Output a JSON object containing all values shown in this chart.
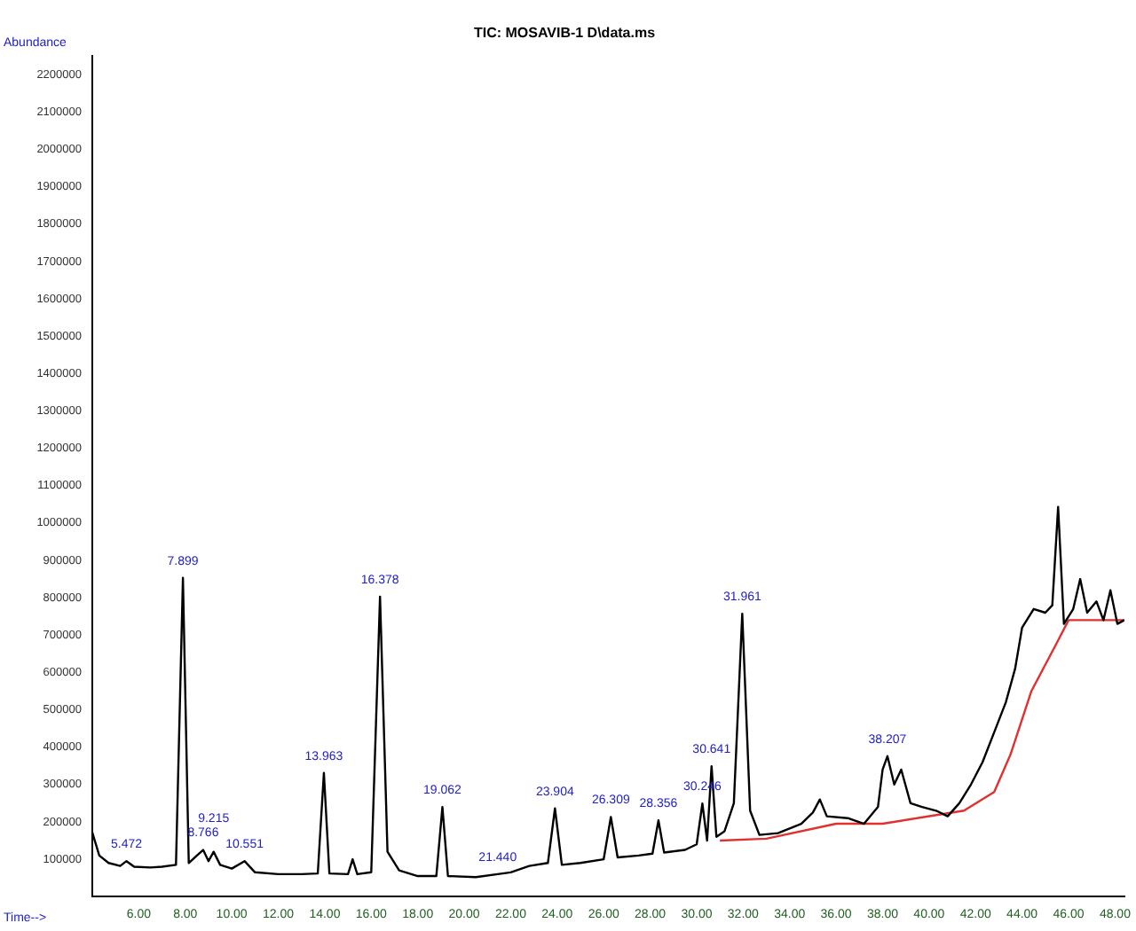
{
  "chart_data": {
    "type": "line",
    "title": "TIC: MOSAVIB-1 D\\data.ms",
    "xlabel": "Time-->",
    "ylabel": "Abundance",
    "legend": false,
    "grid": false,
    "marker": "none",
    "line_style": "solid",
    "xlim": [
      4,
      48.4
    ],
    "xticks": [
      {
        "value": 6,
        "label": "6.00"
      },
      {
        "value": 8,
        "label": "8.00"
      },
      {
        "value": 10,
        "label": "10.00"
      },
      {
        "value": 12,
        "label": "12.00"
      },
      {
        "value": 14,
        "label": "14.00"
      },
      {
        "value": 16,
        "label": "16.00"
      },
      {
        "value": 18,
        "label": "18.00"
      },
      {
        "value": 20,
        "label": "20.00"
      },
      {
        "value": 22,
        "label": "22.00"
      },
      {
        "value": 24,
        "label": "24.00"
      },
      {
        "value": 26,
        "label": "26.00"
      },
      {
        "value": 28,
        "label": "28.00"
      },
      {
        "value": 30,
        "label": "30.00"
      },
      {
        "value": 32,
        "label": "32.00"
      },
      {
        "value": 34,
        "label": "34.00"
      },
      {
        "value": 36,
        "label": "36.00"
      },
      {
        "value": 38,
        "label": "38.00"
      },
      {
        "value": 40,
        "label": "40.00"
      },
      {
        "value": 42,
        "label": "42.00"
      },
      {
        "value": 44,
        "label": "44.00"
      },
      {
        "value": 46,
        "label": "46.00"
      },
      {
        "value": 48,
        "label": "48.00"
      }
    ],
    "ylim": [
      0,
      2250000
    ],
    "yticks": [
      100000,
      200000,
      300000,
      400000,
      500000,
      600000,
      700000,
      800000,
      900000,
      1000000,
      1100000,
      1200000,
      1300000,
      1400000,
      1500000,
      1600000,
      1700000,
      1800000,
      1900000,
      2000000,
      2100000,
      2200000
    ],
    "series": [
      {
        "color": "#000000",
        "x": [
          4.0,
          4.3,
          4.7,
          5.2,
          5.47,
          5.8,
          6.5,
          7.0,
          7.6,
          7.899,
          8.15,
          8.5,
          8.77,
          9.0,
          9.22,
          9.5,
          10.0,
          10.55,
          11.0,
          12.0,
          13.0,
          13.7,
          13.963,
          14.2,
          15.0,
          15.2,
          15.4,
          16.0,
          16.378,
          16.7,
          17.2,
          18.0,
          18.8,
          19.062,
          19.3,
          20.5,
          21.44,
          22.0,
          22.8,
          23.6,
          23.904,
          24.2,
          25.0,
          26.0,
          26.309,
          26.6,
          27.5,
          28.1,
          28.356,
          28.6,
          29.5,
          30.0,
          30.246,
          30.45,
          30.641,
          30.85,
          31.2,
          31.6,
          31.961,
          32.3,
          32.7,
          33.5,
          34.5,
          35.0,
          35.3,
          35.6,
          36.5,
          37.2,
          37.8,
          38.0,
          38.207,
          38.5,
          38.8,
          39.2,
          39.7,
          40.3,
          40.8,
          41.3,
          41.8,
          42.3,
          42.8,
          43.3,
          43.7,
          44.0,
          44.5,
          45.0,
          45.3,
          45.55,
          45.8,
          46.2,
          46.5,
          46.8,
          47.2,
          47.5,
          47.8,
          48.1,
          48.4
        ],
        "values": [
          172000,
          110000,
          90000,
          82000,
          95000,
          80000,
          78000,
          80000,
          85000,
          853000,
          90000,
          110000,
          125000,
          95000,
          120000,
          85000,
          75000,
          95000,
          65000,
          60000,
          60000,
          62000,
          331000,
          62000,
          60000,
          100000,
          60000,
          65000,
          803000,
          120000,
          70000,
          55000,
          55000,
          240000,
          55000,
          52000,
          60000,
          65000,
          82000,
          90000,
          236000,
          85000,
          90000,
          100000,
          213000,
          105000,
          110000,
          115000,
          204000,
          118000,
          125000,
          140000,
          249000,
          150000,
          349000,
          160000,
          175000,
          250000,
          757000,
          230000,
          165000,
          170000,
          195000,
          225000,
          260000,
          215000,
          210000,
          195000,
          240000,
          340000,
          376000,
          300000,
          340000,
          250000,
          240000,
          230000,
          215000,
          250000,
          300000,
          360000,
          440000,
          520000,
          610000,
          720000,
          770000,
          760000,
          780000,
          1043000,
          730000,
          770000,
          850000,
          760000,
          790000,
          740000,
          820000,
          730000,
          740000
        ]
      },
      {
        "color": "#e03030",
        "x": [
          31,
          33,
          36,
          38,
          41.5,
          42.8,
          43.5,
          44.4,
          45.5,
          46,
          48.4
        ],
        "values": [
          150000,
          155000,
          195000,
          195000,
          230000,
          280000,
          380000,
          550000,
          680000,
          740000,
          740000
        ]
      }
    ],
    "annotations": [
      {
        "text": "5.472",
        "x": 5.47,
        "y": 95000
      },
      {
        "text": "7.899",
        "x": 7.899,
        "y": 853000
      },
      {
        "text": "8.766",
        "x": 8.77,
        "y": 125000
      },
      {
        "text": "9.215",
        "x": 9.22,
        "y": 120000
      },
      {
        "text": "10.551",
        "x": 10.55,
        "y": 95000
      },
      {
        "text": "13.963",
        "x": 13.963,
        "y": 331000
      },
      {
        "text": "16.378",
        "x": 16.378,
        "y": 803000
      },
      {
        "text": "19.062",
        "x": 19.062,
        "y": 240000
      },
      {
        "text": "21.440",
        "x": 21.44,
        "y": 60000
      },
      {
        "text": "23.904",
        "x": 23.904,
        "y": 236000
      },
      {
        "text": "26.309",
        "x": 26.309,
        "y": 213000
      },
      {
        "text": "28.356",
        "x": 28.356,
        "y": 204000
      },
      {
        "text": "30.246",
        "x": 30.246,
        "y": 249000
      },
      {
        "text": "30.641",
        "x": 30.641,
        "y": 349000
      },
      {
        "text": "31.961",
        "x": 31.961,
        "y": 757000
      },
      {
        "text": "38.207",
        "x": 38.207,
        "y": 376000
      }
    ]
  }
}
